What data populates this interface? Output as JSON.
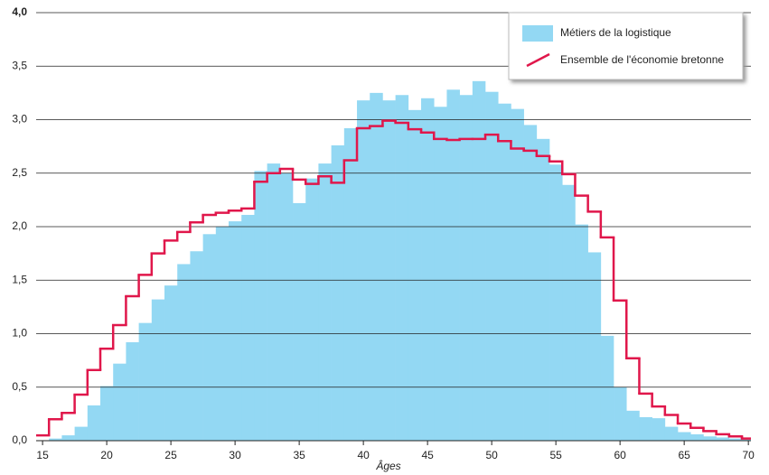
{
  "chart_data": {
    "type": "bar",
    "x_label": "Âges",
    "x": [
      15,
      16,
      17,
      18,
      19,
      20,
      21,
      22,
      23,
      24,
      25,
      26,
      27,
      28,
      29,
      30,
      31,
      32,
      33,
      34,
      35,
      36,
      37,
      38,
      39,
      40,
      41,
      42,
      43,
      44,
      45,
      46,
      47,
      48,
      49,
      50,
      51,
      52,
      53,
      54,
      55,
      56,
      57,
      58,
      59,
      60,
      61,
      62,
      63,
      64,
      65,
      66,
      67,
      68,
      69,
      70
    ],
    "series": [
      {
        "name": "Métiers de la logistique",
        "type": "bar",
        "color": "#93d8f3",
        "values": [
          0.0,
          0.02,
          0.05,
          0.13,
          0.33,
          0.51,
          0.72,
          0.92,
          1.1,
          1.32,
          1.45,
          1.65,
          1.77,
          1.93,
          2.0,
          2.05,
          2.11,
          2.52,
          2.59,
          2.5,
          2.22,
          2.45,
          2.59,
          2.76,
          2.92,
          3.18,
          3.25,
          3.18,
          3.23,
          3.09,
          3.2,
          3.12,
          3.28,
          3.23,
          3.36,
          3.26,
          3.15,
          3.1,
          2.95,
          2.82,
          2.58,
          2.39,
          2.02,
          1.76,
          0.98,
          0.5,
          0.28,
          0.22,
          0.21,
          0.13,
          0.08,
          0.06,
          0.04,
          0.03,
          0.02,
          0.01
        ]
      },
      {
        "name": "Ensemble de l'économie bretonne",
        "type": "step",
        "color": "#e0174b",
        "values": [
          0.05,
          0.2,
          0.26,
          0.43,
          0.66,
          0.86,
          1.08,
          1.35,
          1.55,
          1.75,
          1.87,
          1.95,
          2.04,
          2.11,
          2.13,
          2.15,
          2.17,
          2.42,
          2.5,
          2.54,
          2.44,
          2.4,
          2.47,
          2.41,
          2.62,
          2.92,
          2.94,
          2.99,
          2.97,
          2.91,
          2.88,
          2.82,
          2.81,
          2.82,
          2.82,
          2.86,
          2.8,
          2.73,
          2.71,
          2.66,
          2.61,
          2.49,
          2.29,
          2.14,
          1.9,
          1.31,
          0.77,
          0.44,
          0.32,
          0.24,
          0.16,
          0.12,
          0.09,
          0.06,
          0.04,
          0.02
        ]
      }
    ],
    "xlim": [
      14.5,
      70.2
    ],
    "xticks": [
      15,
      20,
      25,
      30,
      35,
      40,
      45,
      50,
      55,
      60,
      65,
      70
    ],
    "ylim": [
      0,
      4
    ],
    "yticks": [
      {
        "value": 0,
        "label": "0,0"
      },
      {
        "value": 0.5,
        "label": "0,5"
      },
      {
        "value": 1,
        "label": "1,0"
      },
      {
        "value": 1.5,
        "label": "1,5"
      },
      {
        "value": 2,
        "label": "2,0"
      },
      {
        "value": 2.5,
        "label": "2,5"
      },
      {
        "value": 3,
        "label": "3,0"
      },
      {
        "value": 3.5,
        "label": "3,5"
      },
      {
        "value": 4,
        "label": "4,0"
      }
    ],
    "grid": true,
    "legend": "top-right"
  }
}
